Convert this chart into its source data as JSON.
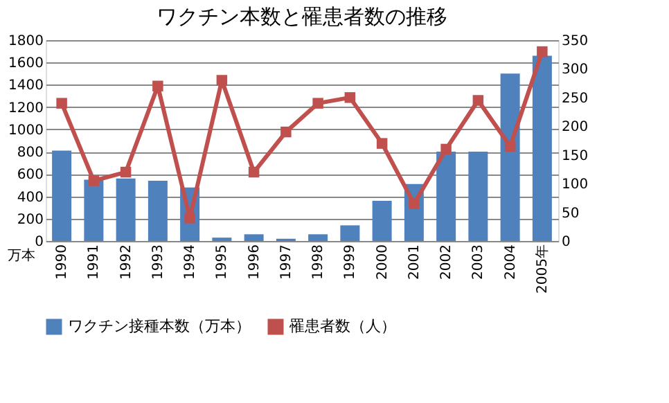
{
  "chart_data": {
    "type": "bar",
    "title": "ワクチン本数と罹患者数の推移",
    "ylabel": "万本",
    "categories": [
      "1990",
      "1991",
      "1992",
      "1993",
      "1994",
      "1995",
      "1996",
      "1997",
      "1998",
      "1999",
      "2000",
      "2001",
      "2002",
      "2003",
      "2004",
      "2005年"
    ],
    "series": [
      {
        "name": "ワクチン接種本数（万本）",
        "color": "#4f81bd",
        "values": [
          810,
          550,
          560,
          540,
          480,
          30,
          60,
          20,
          60,
          140,
          360,
          510,
          800,
          800,
          1500,
          1660
        ]
      },
      {
        "name": "罹患者数（人）",
        "type": "line",
        "axis": "y2",
        "color": "#c0504d",
        "marker": "square",
        "values": [
          240,
          105,
          120,
          270,
          40,
          280,
          120,
          190,
          240,
          250,
          170,
          65,
          160,
          245,
          165,
          330
        ]
      }
    ],
    "ylim": [
      0,
      1800
    ],
    "yticks": [
      0,
      200,
      400,
      600,
      800,
      1000,
      1200,
      1400,
      1600,
      1800
    ],
    "y2lim": [
      0,
      350
    ],
    "y2ticks": [
      0,
      50,
      100,
      150,
      200,
      250,
      300,
      350
    ],
    "grid": "y",
    "legend": "bottom"
  }
}
